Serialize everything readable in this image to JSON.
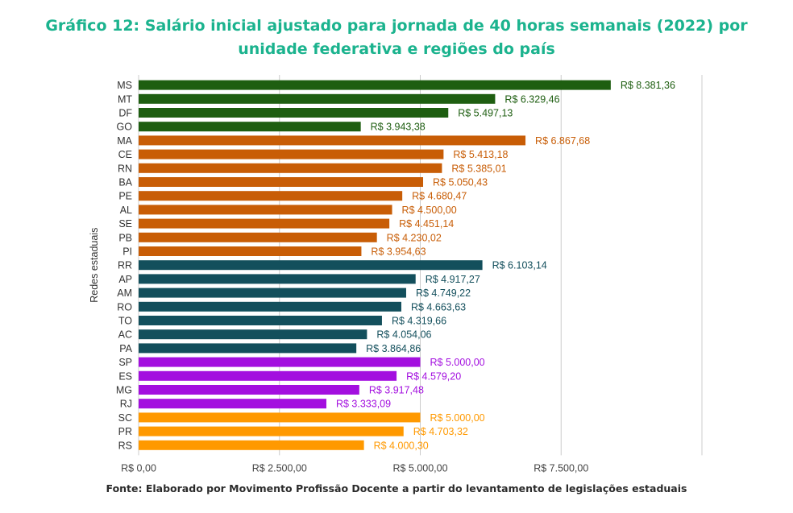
{
  "title": {
    "line1": "Gráfico 12: Salário inicial ajustado para jornada de 40 horas semanais (2022) por",
    "line2": "unidade federativa e regiões do país"
  },
  "source": "Fonte: Elaborado por Movimento Profissão Docente a partir do levantamento de legislações estaduais",
  "colors": {
    "centro_oeste": "#1e5e11",
    "nordeste": "#c85d06",
    "norte": "#134f5c",
    "sudeste": "#a30fdf",
    "sul": "#ff9900",
    "grid": "#cccccc",
    "title": "#1bb38e"
  },
  "chart_data": {
    "type": "bar",
    "orientation": "horizontal",
    "ylabel": "Redes estaduais",
    "xlabel": "",
    "xlim": [
      0,
      10000
    ],
    "x_ticks": [
      0,
      2500,
      5000,
      7500
    ],
    "x_tick_labels": [
      "R$ 0,00",
      "R$ 2.500,00",
      "R$ 5.000,00",
      "R$ 7.500,00"
    ],
    "grid": true,
    "categories": [
      "MS",
      "MT",
      "DF",
      "GO",
      "MA",
      "CE",
      "RN",
      "BA",
      "PE",
      "AL",
      "SE",
      "PB",
      "PI",
      "RR",
      "AP",
      "AM",
      "RO",
      "TO",
      "AC",
      "PA",
      "SP",
      "ES",
      "MG",
      "RJ",
      "SC",
      "PR",
      "RS"
    ],
    "values": [
      8381.36,
      6329.46,
      5497.13,
      3943.38,
      6867.68,
      5413.18,
      5385.01,
      5050.43,
      4680.47,
      4500.0,
      4451.14,
      4230.02,
      3954.63,
      6103.14,
      4917.27,
      4749.22,
      4663.63,
      4319.66,
      4054.06,
      3864.86,
      5000.0,
      4579.2,
      3917.48,
      3333.09,
      5000.0,
      4703.32,
      4000.3
    ],
    "value_labels": [
      "R$ 8.381,36",
      "R$ 6.329,46",
      "R$ 5.497,13",
      "R$ 3.943,38",
      "R$ 6.867,68",
      "R$ 5.413,18",
      "R$ 5.385,01",
      "R$ 5.050,43",
      "R$ 4.680,47",
      "R$ 4.500,00",
      "R$ 4.451,14",
      "R$ 4.230,02",
      "R$ 3.954,63",
      "R$ 6.103,14",
      "R$ 4.917,27",
      "R$ 4.749,22",
      "R$ 4.663,63",
      "R$ 4.319,66",
      "R$ 4.054,06",
      "R$ 3.864,86",
      "R$ 5.000,00",
      "R$ 4.579,20",
      "R$ 3.917,48",
      "R$ 3.333,09",
      "R$ 5.000,00",
      "R$ 4.703,32",
      "R$ 4.000,30"
    ],
    "regions": [
      "centro_oeste",
      "centro_oeste",
      "centro_oeste",
      "centro_oeste",
      "nordeste",
      "nordeste",
      "nordeste",
      "nordeste",
      "nordeste",
      "nordeste",
      "nordeste",
      "nordeste",
      "nordeste",
      "norte",
      "norte",
      "norte",
      "norte",
      "norte",
      "norte",
      "norte",
      "sudeste",
      "sudeste",
      "sudeste",
      "sudeste",
      "sul",
      "sul",
      "sul"
    ]
  }
}
